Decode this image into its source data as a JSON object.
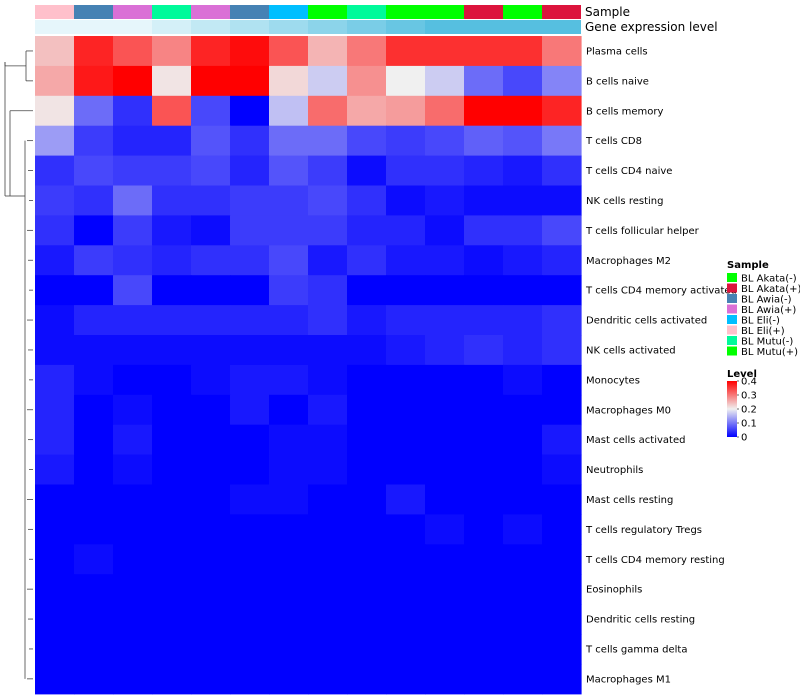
{
  "chart_data": {
    "type": "heatmap",
    "annotations": {
      "sample_label": "Sample",
      "gene_label": "Gene expression level",
      "sample_colors": [
        "#FFC0CB",
        "#4682B4",
        "#DA70D6",
        "#00FA9A",
        "#DA70D6",
        "#4682B4",
        "#00BFFF",
        "#00FF00",
        "#00FA9A",
        "#00FF00",
        "#00FF00",
        "#DC143C",
        "#00FF00",
        "#DC143C"
      ],
      "gene_colors": [
        "#E6F6FB",
        "#E6F6FB",
        "#E6F6FB",
        "#D4F0F8",
        "#C2E9F4",
        "#B0E2F1",
        "#9EDBEE",
        "#8CD4EA",
        "#7ACDE7",
        "#68C6E3",
        "#56BFE0",
        "#56BFE0",
        "#56BFE0",
        "#56BFE0"
      ]
    },
    "rows": [
      "Plasma cells",
      "B cells naive",
      "B cells memory",
      "T cells CD8",
      "T cells CD4 naive",
      "NK cells resting",
      "T cells follicular helper",
      "Macrophages M2",
      "T cells CD4 memory activated",
      "Dendritic cells activated",
      "NK cells activated",
      "Monocytes",
      "Macrophages M0",
      "Mast cells activated",
      "Neutrophils",
      "Mast cells resting",
      "T cells regulatory  Tregs",
      "T cells CD4 memory resting",
      "Eosinophils",
      "Dendritic cells resting",
      "T cells gamma delta",
      "Macrophages M1"
    ],
    "values": [
      [
        0.24,
        0.37,
        0.33,
        0.29,
        0.37,
        0.39,
        0.33,
        0.25,
        0.3,
        0.36,
        0.36,
        0.36,
        0.36,
        0.3
      ],
      [
        0.26,
        0.38,
        0.41,
        0.21,
        0.41,
        0.41,
        0.22,
        0.17,
        0.28,
        0.2,
        0.17,
        0.09,
        0.06,
        0.11
      ],
      [
        0.21,
        0.09,
        0.04,
        0.33,
        0.06,
        0.0,
        0.16,
        0.31,
        0.26,
        0.27,
        0.31,
        0.41,
        0.41,
        0.37
      ],
      [
        0.13,
        0.05,
        0.03,
        0.03,
        0.07,
        0.04,
        0.09,
        0.09,
        0.06,
        0.05,
        0.06,
        0.08,
        0.07,
        0.1
      ],
      [
        0.04,
        0.06,
        0.05,
        0.05,
        0.06,
        0.03,
        0.07,
        0.05,
        0.01,
        0.04,
        0.04,
        0.03,
        0.02,
        0.04
      ],
      [
        0.05,
        0.04,
        0.09,
        0.04,
        0.04,
        0.05,
        0.05,
        0.06,
        0.04,
        0.01,
        0.02,
        0.01,
        0.01,
        0.01
      ],
      [
        0.04,
        0.0,
        0.05,
        0.02,
        0.01,
        0.05,
        0.05,
        0.05,
        0.03,
        0.03,
        0.01,
        0.04,
        0.04,
        0.06
      ],
      [
        0.02,
        0.05,
        0.04,
        0.03,
        0.04,
        0.04,
        0.06,
        0.02,
        0.04,
        0.02,
        0.02,
        0.01,
        0.02,
        0.03
      ],
      [
        0.0,
        0.0,
        0.06,
        0.0,
        0.0,
        0.0,
        0.05,
        0.04,
        0.0,
        0.0,
        0.0,
        0.0,
        0.0,
        0.0
      ],
      [
        0.01,
        0.03,
        0.03,
        0.03,
        0.03,
        0.03,
        0.03,
        0.04,
        0.02,
        0.03,
        0.03,
        0.03,
        0.03,
        0.04
      ],
      [
        0.01,
        0.01,
        0.01,
        0.01,
        0.01,
        0.01,
        0.01,
        0.01,
        0.01,
        0.02,
        0.03,
        0.04,
        0.03,
        0.04
      ],
      [
        0.03,
        0.01,
        0.0,
        0.0,
        0.01,
        0.02,
        0.02,
        0.01,
        0.0,
        0.0,
        0.0,
        0.0,
        0.01,
        0.0
      ],
      [
        0.03,
        0.0,
        0.01,
        0.0,
        0.0,
        0.02,
        0.0,
        0.02,
        0.0,
        0.0,
        0.0,
        0.0,
        0.0,
        0.0
      ],
      [
        0.03,
        0.0,
        0.02,
        0.0,
        0.0,
        0.0,
        0.01,
        0.01,
        0.0,
        0.0,
        0.0,
        0.0,
        0.0,
        0.02
      ],
      [
        0.02,
        0.0,
        0.01,
        0.0,
        0.0,
        0.0,
        0.01,
        0.01,
        0.0,
        0.0,
        0.0,
        0.0,
        0.0,
        0.01
      ],
      [
        0.0,
        0.0,
        0.0,
        0.0,
        0.0,
        0.01,
        0.01,
        0.0,
        0.0,
        0.02,
        0.0,
        0.0,
        0.0,
        0.0
      ],
      [
        0.0,
        0.0,
        0.0,
        0.0,
        0.0,
        0.0,
        0.0,
        0.0,
        0.0,
        0.0,
        0.01,
        0.0,
        0.01,
        0.0
      ],
      [
        0.0,
        0.01,
        0.0,
        0.0,
        0.0,
        0.0,
        0.0,
        0.0,
        0.0,
        0.0,
        0.0,
        0.0,
        0.0,
        0.0
      ],
      [
        0.0,
        0.0,
        0.0,
        0.0,
        0.0,
        0.0,
        0.0,
        0.0,
        0.0,
        0.0,
        0.0,
        0.0,
        0.0,
        0.0
      ],
      [
        0.0,
        0.0,
        0.0,
        0.0,
        0.0,
        0.0,
        0.0,
        0.0,
        0.0,
        0.0,
        0.0,
        0.0,
        0.0,
        0.0
      ],
      [
        0.0,
        0.0,
        0.0,
        0.0,
        0.0,
        0.0,
        0.0,
        0.0,
        0.0,
        0.0,
        0.0,
        0.0,
        0.0,
        0.0
      ],
      [
        0.0,
        0.0,
        0.0,
        0.0,
        0.0,
        0.0,
        0.0,
        0.0,
        0.0,
        0.0,
        0.0,
        0.0,
        0.0,
        0.0
      ]
    ],
    "color_scale": {
      "min": 0,
      "mid": 0.2,
      "max": 0.4,
      "low_color": "#0000FF",
      "mid_color": "#F0F0F0",
      "high_color": "#FF0000"
    },
    "legend_sample": {
      "title": "Sample",
      "items": [
        {
          "label": "BL Akata(-)",
          "color": "#00FF00"
        },
        {
          "label": "BL Akata(+)",
          "color": "#DC143C"
        },
        {
          "label": "BL Awia(-)",
          "color": "#4682B4"
        },
        {
          "label": "BL Awia(+)",
          "color": "#DA70D6"
        },
        {
          "label": "BL Eli(-)",
          "color": "#00BFFF"
        },
        {
          "label": "BL Eli(+)",
          "color": "#FFC0CB"
        },
        {
          "label": "BL Mutu(-)",
          "color": "#00FA9A"
        },
        {
          "label": "BL Mutu(+)",
          "color": "#00FF00"
        }
      ]
    },
    "legend_level": {
      "title": "Level",
      "ticks": [
        "0.4",
        "0.3",
        "0.2",
        "0.1",
        "0"
      ]
    },
    "legend_placement": "right"
  }
}
